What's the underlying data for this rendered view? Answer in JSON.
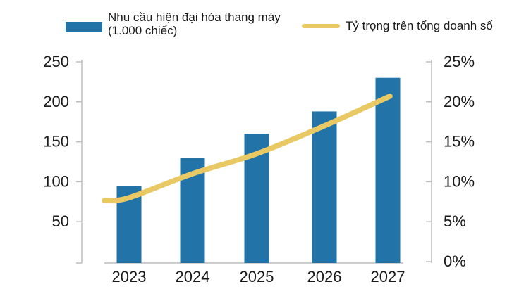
{
  "legend": {
    "bar": {
      "label_line1": "Nhu cầu hiện đại hóa thang máy",
      "label_line2": "(1.000 chiếc)"
    },
    "line": {
      "label": "Tỷ trọng trên tổng doanh số"
    }
  },
  "colors": {
    "bar": "#2173A8",
    "line": "#E9C964",
    "axis": "#BDBDBD",
    "text": "#1A1A1A"
  },
  "chart_data": {
    "type": "combo-bar-line",
    "categories": [
      "2023",
      "2024",
      "2025",
      "2026",
      "2027"
    ],
    "series": [
      {
        "name": "Nhu cầu hiện đại hóa thang máy (1.000 chiếc)",
        "type": "bar",
        "axis": "left",
        "values": [
          95,
          130,
          160,
          188,
          230
        ]
      },
      {
        "name": "Tỷ trọng trên tổng doanh số",
        "type": "line",
        "axis": "right",
        "values": [
          8,
          11,
          13.5,
          17,
          20.5
        ]
      }
    ],
    "left_axis": {
      "tick_labels": [
        "250",
        "200",
        "150",
        "100",
        "50"
      ],
      "tick_values": [
        250,
        200,
        150,
        100,
        50
      ],
      "min": 0,
      "max": 250,
      "zero_labeled": false
    },
    "right_axis": {
      "tick_labels": [
        "25%",
        "20%",
        "15%",
        "10%",
        "5%",
        "0%"
      ],
      "tick_values": [
        25,
        20,
        15,
        10,
        5,
        0
      ],
      "min": 0,
      "max": 25
    },
    "legend_position": "top",
    "grid": false
  }
}
